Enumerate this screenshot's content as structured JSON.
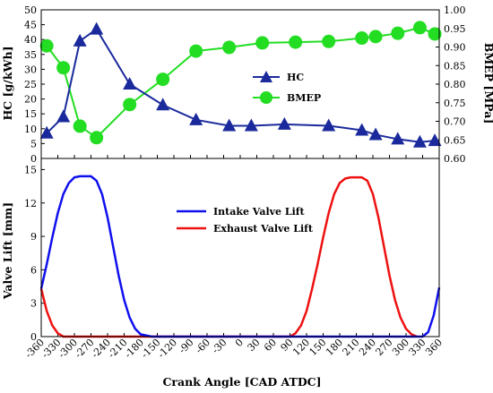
{
  "colors": {
    "hc": "#1a2a9c",
    "bmep": "#22dd22",
    "intake": "#1010ee",
    "exhaust": "#ee1111",
    "axis": "#000000"
  },
  "chart_data": [
    {
      "type": "line",
      "panel": "top",
      "x": [
        -360,
        -330,
        -300,
        -270,
        -240,
        -210,
        -180,
        -150,
        -120,
        -90,
        -60,
        -30,
        0,
        30,
        60,
        90,
        120,
        150,
        180,
        210,
        240,
        270,
        300,
        330,
        360
      ],
      "xlim": [
        -360,
        360
      ],
      "ylabel": "HC [g/kWh]",
      "y2label": "BMEP [MPa]",
      "ylim": [
        0,
        50
      ],
      "yticks": [
        "0",
        "5",
        "10",
        "15",
        "20",
        "25",
        "30",
        "35",
        "40",
        "45",
        "50"
      ],
      "y2lim": [
        0.6,
        1.0
      ],
      "y2ticks": [
        "0.60",
        "0.65",
        "0.70",
        "0.75",
        "0.80",
        "0.85",
        "0.90",
        "0.95",
        "1.00"
      ],
      "legend_position": "center-right",
      "series": [
        {
          "name": "HC",
          "axis": "left",
          "marker": "triangle",
          "points": [
            [
              -350,
              8.5
            ],
            [
              -320,
              14
            ],
            [
              -290,
              39.5
            ],
            [
              -260,
              43.5
            ],
            [
              -200,
              25
            ],
            [
              -140,
              18
            ],
            [
              -80,
              13
            ],
            [
              -20,
              11
            ],
            [
              20,
              11
            ],
            [
              80,
              11.5
            ],
            [
              160,
              11
            ],
            [
              220,
              9.5
            ],
            [
              245,
              8
            ],
            [
              285,
              6.5
            ],
            [
              325,
              5.5
            ],
            [
              352,
              6
            ]
          ]
        },
        {
          "name": "BMEP",
          "axis": "right",
          "marker": "circle",
          "points": [
            [
              -350,
              0.903
            ],
            [
              -320,
              0.844
            ],
            [
              -290,
              0.687
            ],
            [
              -260,
              0.656
            ],
            [
              -200,
              0.745
            ],
            [
              -140,
              0.813
            ],
            [
              -80,
              0.889
            ],
            [
              -20,
              0.899
            ],
            [
              40,
              0.911
            ],
            [
              100,
              0.913
            ],
            [
              160,
              0.915
            ],
            [
              220,
              0.924
            ],
            [
              245,
              0.928
            ],
            [
              285,
              0.937
            ],
            [
              325,
              0.952
            ],
            [
              352,
              0.935
            ]
          ]
        }
      ]
    },
    {
      "type": "line",
      "panel": "bottom",
      "xlabel": "Crank Angle [CAD ATDC]",
      "xlim": [
        -360,
        360
      ],
      "xticks": [
        "-360",
        "-330",
        "-300",
        "-270",
        "-240",
        "-210",
        "-180",
        "-150",
        "-120",
        "-90",
        "-60",
        "-30",
        "0",
        "30",
        "60",
        "90",
        "120",
        "150",
        "180",
        "210",
        "240",
        "270",
        "300",
        "330",
        "360"
      ],
      "ylabel": "Valve Lift [mm]",
      "ylim": [
        0,
        16
      ],
      "yticks": [
        "0",
        "3",
        "6",
        "9",
        "12",
        "15"
      ],
      "legend_position": "top-center",
      "series": [
        {
          "name": "Intake Valve Lift",
          "points": [
            [
              -360,
              4.3
            ],
            [
              -350,
              6.5
            ],
            [
              -340,
              8.9
            ],
            [
              -330,
              11.1
            ],
            [
              -320,
              12.8
            ],
            [
              -310,
              13.8
            ],
            [
              -300,
              14.3
            ],
            [
              -290,
              14.4
            ],
            [
              -270,
              14.4
            ],
            [
              -260,
              14.0
            ],
            [
              -250,
              12.8
            ],
            [
              -240,
              10.7
            ],
            [
              -230,
              8.1
            ],
            [
              -220,
              5.5
            ],
            [
              -210,
              3.3
            ],
            [
              -200,
              1.7
            ],
            [
              -190,
              0.7
            ],
            [
              -180,
              0.2
            ],
            [
              -160,
              0
            ],
            [
              330,
              0
            ],
            [
              340,
              0.4
            ],
            [
              350,
              1.9
            ],
            [
              360,
              4.4
            ]
          ]
        },
        {
          "name": "Exhaust Valve Lift",
          "points": [
            [
              -360,
              4.3
            ],
            [
              -350,
              2.3
            ],
            [
              -340,
              1.0
            ],
            [
              -330,
              0.3
            ],
            [
              -320,
              0
            ],
            [
              90,
              0
            ],
            [
              100,
              0.3
            ],
            [
              110,
              1.0
            ],
            [
              120,
              2.3
            ],
            [
              130,
              4.3
            ],
            [
              140,
              6.5
            ],
            [
              150,
              8.9
            ],
            [
              160,
              11.1
            ],
            [
              170,
              12.8
            ],
            [
              180,
              13.8
            ],
            [
              190,
              14.2
            ],
            [
              200,
              14.3
            ],
            [
              220,
              14.3
            ],
            [
              230,
              14.0
            ],
            [
              240,
              12.8
            ],
            [
              250,
              10.7
            ],
            [
              260,
              8.1
            ],
            [
              270,
              5.5
            ],
            [
              280,
              3.3
            ],
            [
              290,
              1.7
            ],
            [
              300,
              0.7
            ],
            [
              310,
              0.2
            ],
            [
              320,
              0
            ]
          ]
        }
      ]
    }
  ]
}
